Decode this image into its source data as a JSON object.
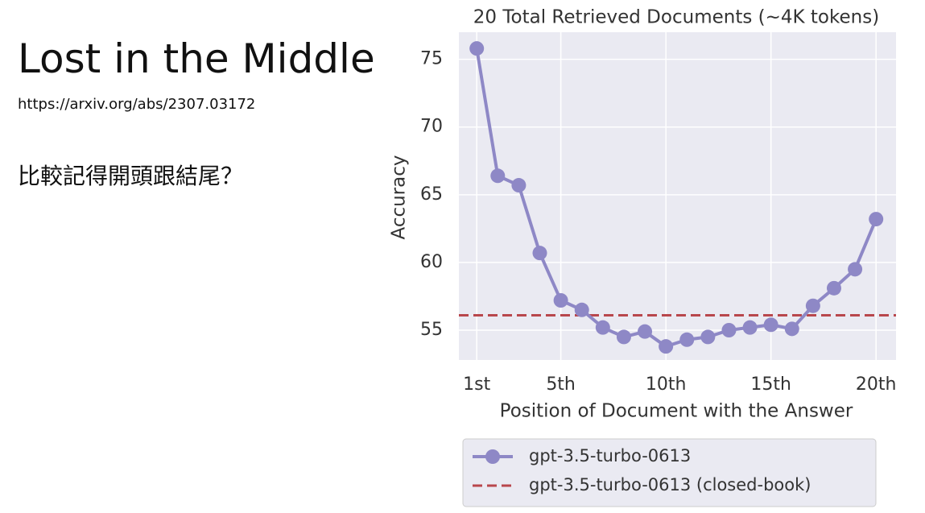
{
  "slide_title": "Lost in the Middle",
  "link": "https://arxiv.org/abs/2307.03172",
  "question": "比較記得開頭跟結尾？",
  "chart_data": {
    "type": "line",
    "title": "20 Total Retrieved Documents (~4K tokens)",
    "x_label": "Position of Document with the Answer",
    "y_label": "Accuracy",
    "x": [
      1,
      2,
      3,
      4,
      5,
      6,
      7,
      8,
      9,
      10,
      11,
      12,
      13,
      14,
      15,
      16,
      17,
      18,
      19,
      20
    ],
    "xlim": [
      0.15,
      20.95
    ],
    "xticks": [
      {
        "value": 1,
        "label": "1st"
      },
      {
        "value": 5,
        "label": "5th"
      },
      {
        "value": 10,
        "label": "10th"
      },
      {
        "value": 15,
        "label": "15th"
      },
      {
        "value": 20,
        "label": "20th"
      }
    ],
    "ylim": [
      52.8,
      77
    ],
    "yticks": [
      55,
      60,
      65,
      70,
      75
    ],
    "grid": true,
    "series": [
      {
        "name": "gpt-3.5-turbo-0613",
        "color": "#8e88c6",
        "values": [
          75.8,
          66.4,
          65.7,
          60.7,
          57.2,
          56.5,
          55.2,
          54.5,
          54.9,
          53.8,
          54.3,
          54.5,
          55.0,
          55.2,
          55.4,
          55.1,
          56.8,
          58.1,
          59.5,
          63.2
        ]
      }
    ],
    "reference_line": {
      "name": "gpt-3.5-turbo-0613 (closed-book)",
      "color": "#b8474c",
      "value": 56.1
    },
    "legend": "below"
  }
}
